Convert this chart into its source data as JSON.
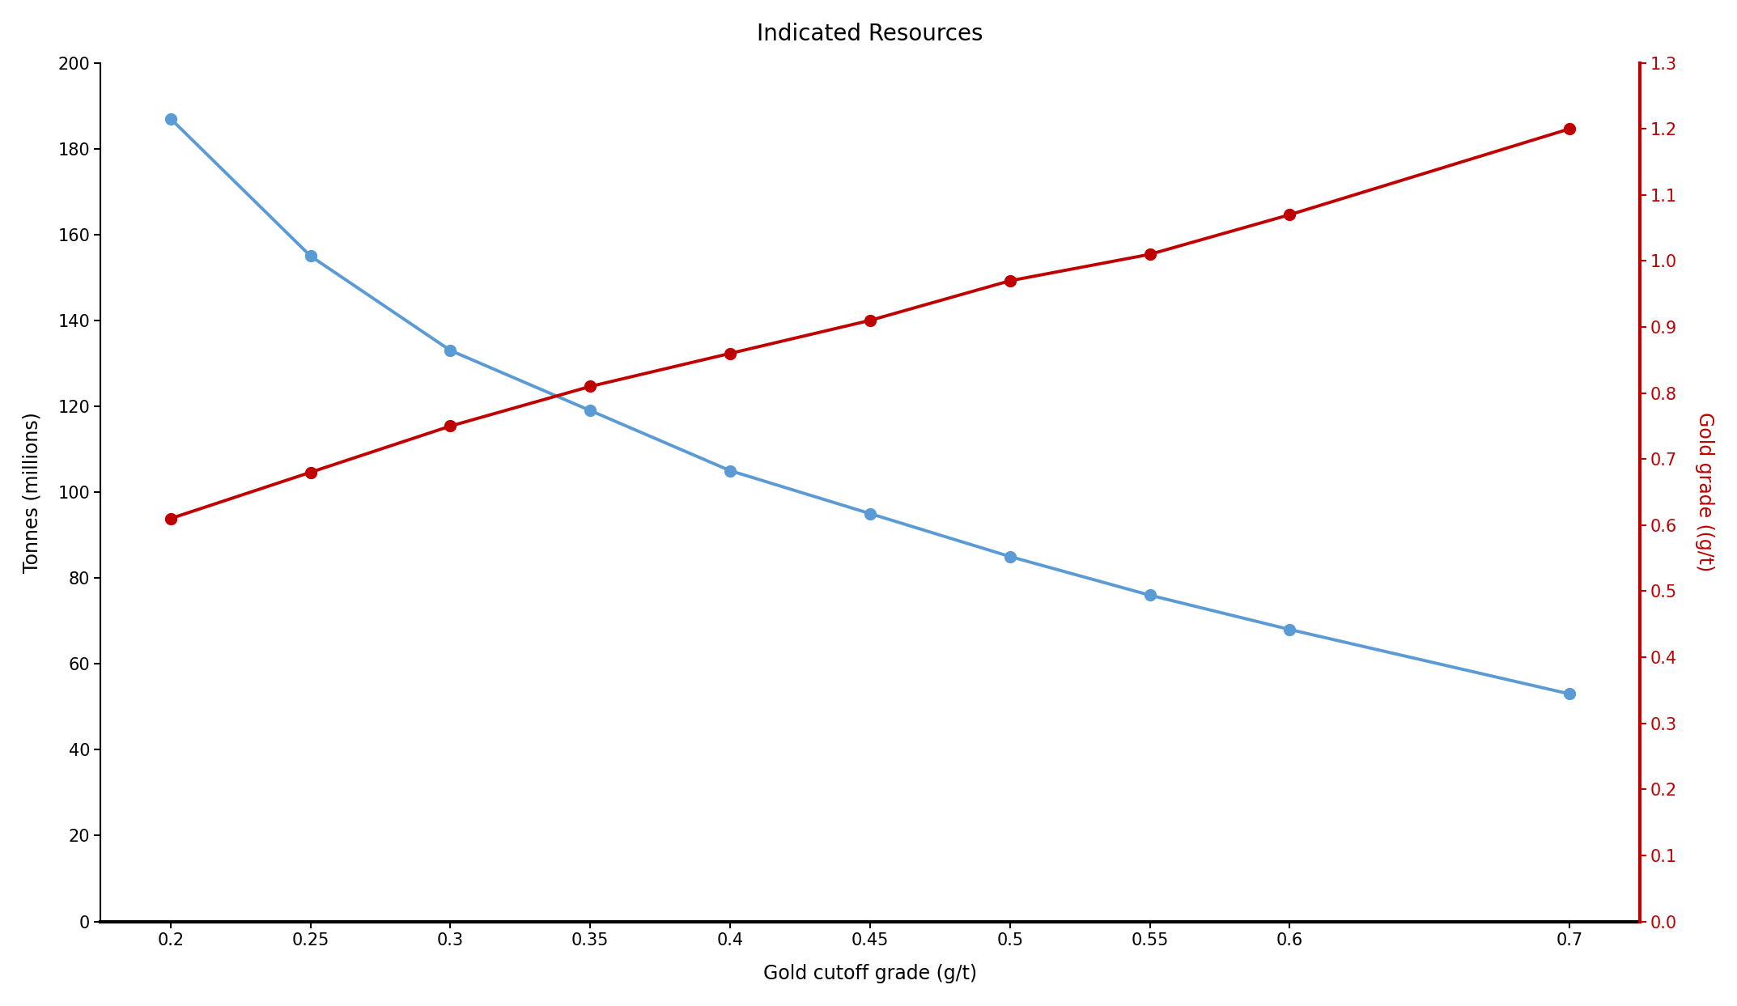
{
  "title": "Indicated Resources",
  "xlabel": "Gold cutoff grade (g/t)",
  "ylabel_left": "Tonnes (millions)",
  "ylabel_right": "Gold grade ((g/t)",
  "x": [
    0.2,
    0.25,
    0.3,
    0.35,
    0.4,
    0.45,
    0.5,
    0.55,
    0.6,
    0.7
  ],
  "tonnes": [
    187,
    155,
    133,
    119,
    105,
    95,
    85,
    76,
    68,
    53
  ],
  "grade": [
    0.61,
    0.68,
    0.75,
    0.81,
    0.86,
    0.91,
    0.97,
    1.01,
    1.07,
    1.2
  ],
  "blue_color": "#5B9BD5",
  "red_color": "#C00000",
  "left_ylim": [
    0,
    200
  ],
  "right_ylim": [
    0.0,
    1.3
  ],
  "left_yticks": [
    0,
    20,
    40,
    60,
    80,
    100,
    120,
    140,
    160,
    180,
    200
  ],
  "right_yticks": [
    0.0,
    0.1,
    0.2,
    0.3,
    0.4,
    0.5,
    0.6,
    0.7,
    0.8,
    0.9,
    1.0,
    1.1,
    1.2,
    1.3
  ],
  "xticks": [
    0.2,
    0.25,
    0.3,
    0.35,
    0.4,
    0.45,
    0.5,
    0.55,
    0.6,
    0.7
  ],
  "title_fontsize": 20,
  "label_fontsize": 17,
  "tick_fontsize": 15,
  "marker_size": 10,
  "line_width": 2.8,
  "background_color": "#FFFFFF",
  "spine_color": "#000000",
  "right_spine_color": "#C00000",
  "xlim": [
    0.175,
    0.725
  ]
}
